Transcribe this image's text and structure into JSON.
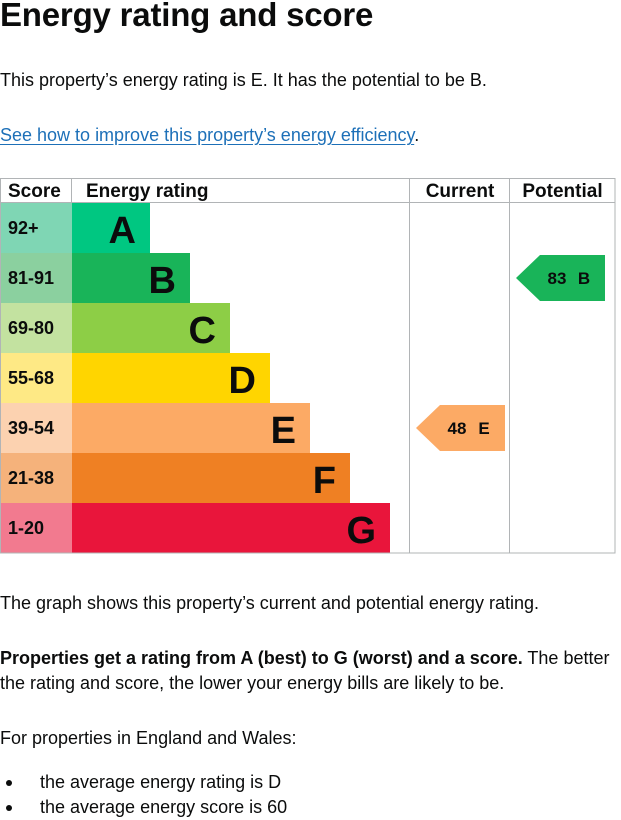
{
  "heading": "Energy rating and score",
  "summary": "This property’s energy rating is E. It has the potential to be B.",
  "improve_link": "See how to improve this property’s energy efficiency",
  "improve_link_end": ".",
  "chart_data": {
    "type": "bar",
    "columns": {
      "score": "Score",
      "rating": "Energy rating",
      "current": "Current",
      "potential": "Potential"
    },
    "bands": [
      {
        "band": "A",
        "range": "92+",
        "color": "#00c781",
        "scoreColor": "#7fd6b4"
      },
      {
        "band": "B",
        "range": "81-91",
        "color": "#19b459",
        "scoreColor": "#8bd09f"
      },
      {
        "band": "C",
        "range": "69-80",
        "color": "#8dce46",
        "scoreColor": "#c3e2a0"
      },
      {
        "band": "D",
        "range": "55-68",
        "color": "#ffd500",
        "scoreColor": "#fee985"
      },
      {
        "band": "E",
        "range": "39-54",
        "color": "#fcaa65",
        "scoreColor": "#fcd2b0"
      },
      {
        "band": "F",
        "range": "21-38",
        "color": "#ef8023",
        "scoreColor": "#f5b27b"
      },
      {
        "band": "G",
        "range": "1-20",
        "color": "#e9153b",
        "scoreColor": "#f27a8f"
      }
    ],
    "current": {
      "score": 48,
      "band": "E",
      "color": "#fcaa65"
    },
    "potential": {
      "score": 83,
      "band": "B",
      "color": "#19b459"
    }
  },
  "graph_caption": "The graph shows this property’s current and potential energy rating.",
  "ratings_bold": "Properties get a rating from A (best) to G (worst) and a score.",
  "ratings_rest": " The better the rating and score, the lower your energy bills are likely to be.",
  "england_wales": "For properties in England and Wales:",
  "bullets": [
    "the average energy rating is D",
    "the average energy score is 60"
  ]
}
